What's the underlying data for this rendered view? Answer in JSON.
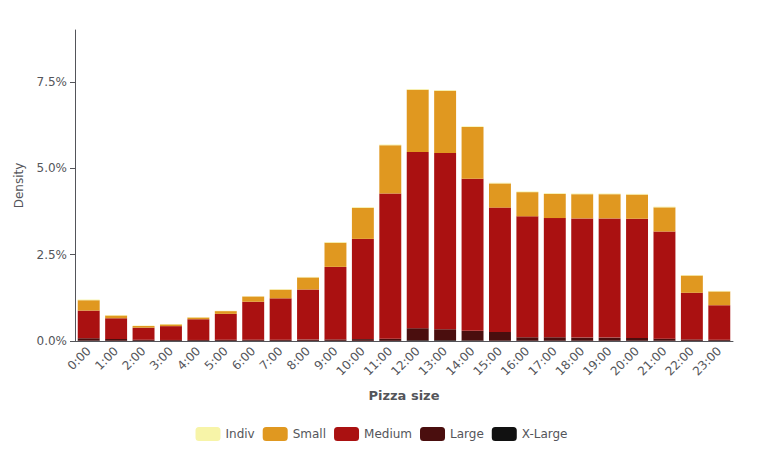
{
  "chart_data": {
    "type": "bar",
    "xlabel": "Pizza size",
    "ylabel": "Density",
    "categories": [
      "0:00",
      "1:00",
      "2:00",
      "3:00",
      "4:00",
      "5:00",
      "6:00",
      "7:00",
      "8:00",
      "9:00",
      "10:00",
      "11:00",
      "12:00",
      "13:00",
      "14:00",
      "15:00",
      "16:00",
      "17:00",
      "18:00",
      "19:00",
      "20:00",
      "21:00",
      "22:00",
      "23:00"
    ],
    "series": [
      {
        "name": "X-Large",
        "color": "#111111",
        "values": [
          0.0001,
          8e-05,
          5e-05,
          5e-05,
          5e-05,
          5e-05,
          5e-05,
          5e-05,
          5e-05,
          5e-05,
          5e-05,
          5e-05,
          0.0002,
          0.0002,
          0.00015,
          0.0001,
          8e-05,
          8e-05,
          8e-05,
          8e-05,
          8e-05,
          8e-05,
          5e-05,
          5e-05
        ]
      },
      {
        "name": "Large",
        "color": "#4a0e0e",
        "values": [
          0.0007,
          0.0005,
          0.0003,
          0.00025,
          0.00025,
          0.0003,
          0.0003,
          0.0003,
          0.00035,
          0.0004,
          0.0005,
          0.0006,
          0.0035,
          0.0032,
          0.0028,
          0.0025,
          0.001,
          0.001,
          0.0009,
          0.0009,
          0.0008,
          0.0006,
          0.0004,
          0.0003
        ]
      },
      {
        "name": "Medium",
        "color": "#aa1111",
        "values": [
          0.008,
          0.006,
          0.0035,
          0.004,
          0.006,
          0.0075,
          0.011,
          0.012,
          0.0145,
          0.021,
          0.029,
          0.042,
          0.051,
          0.051,
          0.044,
          0.036,
          0.035,
          0.0345,
          0.0345,
          0.0345,
          0.0345,
          0.031,
          0.0135,
          0.01
        ]
      },
      {
        "name": "Small",
        "color": "#e09820",
        "values": [
          0.003,
          0.0008,
          0.0005,
          0.0005,
          0.0005,
          0.0008,
          0.0015,
          0.0025,
          0.0035,
          0.007,
          0.009,
          0.014,
          0.018,
          0.018,
          0.015,
          0.007,
          0.007,
          0.007,
          0.007,
          0.007,
          0.007,
          0.007,
          0.005,
          0.004
        ]
      },
      {
        "name": "Indiv",
        "color": "#f7f4a8",
        "values": [
          0.0002,
          0.00015,
          0.0001,
          0.0001,
          0.0001,
          0.0001,
          0.0001,
          0.00015,
          0.00015,
          0.0002,
          0.0002,
          0.0002,
          0.0002,
          0.0002,
          0.0002,
          0.0002,
          0.0002,
          0.0002,
          0.0002,
          0.0002,
          0.0002,
          0.0002,
          0.00015,
          0.00015
        ]
      }
    ],
    "stacked": true,
    "ylim": [
      0,
      0.09
    ],
    "yticks": [
      {
        "value": 0.0,
        "label": "0.0%"
      },
      {
        "value": 0.025,
        "label": "2.5%"
      },
      {
        "value": 0.05,
        "label": "5.0%"
      },
      {
        "value": 0.075,
        "label": "7.5%"
      }
    ],
    "grid": false,
    "legend": "bottom"
  }
}
